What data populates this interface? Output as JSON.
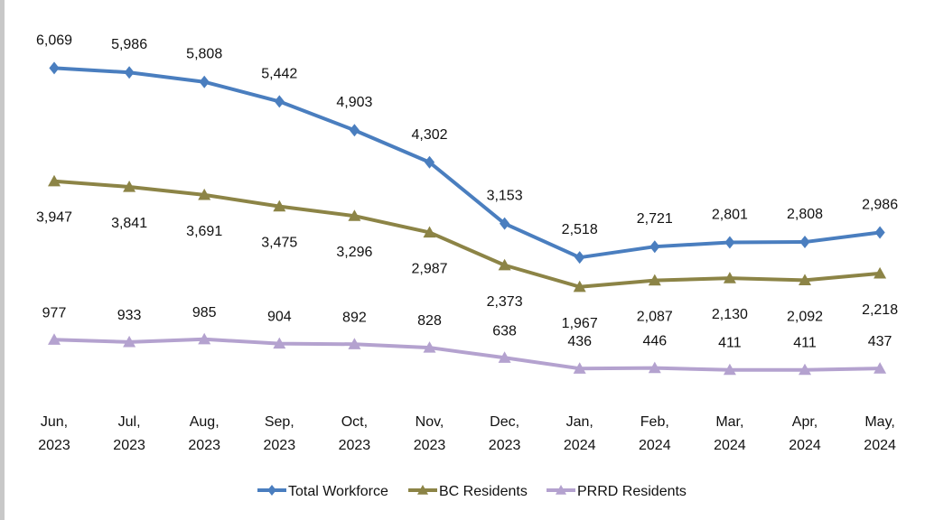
{
  "chart_data": {
    "type": "line",
    "categories": [
      [
        "Jun,",
        "2023"
      ],
      [
        "Jul,",
        "2023"
      ],
      [
        "Aug,",
        "2023"
      ],
      [
        "Sep,",
        "2023"
      ],
      [
        "Oct,",
        "2023"
      ],
      [
        "Nov,",
        "2023"
      ],
      [
        "Dec,",
        "2023"
      ],
      [
        "Jan,",
        "2024"
      ],
      [
        "Feb,",
        "2024"
      ],
      [
        "Mar,",
        "2024"
      ],
      [
        "Apr,",
        "2024"
      ],
      [
        "May,",
        "2024"
      ]
    ],
    "series": [
      {
        "name": "Total Workforce",
        "color": "#4a7ebf",
        "marker": "diamond",
        "values": [
          6069,
          5986,
          5808,
          5442,
          4903,
          4302,
          3153,
          2518,
          2721,
          2801,
          2808,
          2986
        ],
        "labels": [
          "6,069",
          "5,986",
          "5,808",
          "5,442",
          "4,903",
          "4,302",
          "3,153",
          "2,518",
          "2,721",
          "2,801",
          "2,808",
          "2,986"
        ],
        "label_position": "above"
      },
      {
        "name": "BC Residents",
        "color": "#8c8446",
        "marker": "triangle",
        "values": [
          3947,
          3841,
          3691,
          3475,
          3296,
          2987,
          2373,
          1967,
          2087,
          2130,
          2092,
          2218
        ],
        "labels": [
          "3,947",
          "3,841",
          "3,691",
          "3,475",
          "3,296",
          "2,987",
          "2,373",
          "1,967",
          "2,087",
          "2,130",
          "2,092",
          "2,218"
        ],
        "label_position": "below"
      },
      {
        "name": "PRRD Residents",
        "color": "#b4a2cf",
        "marker": "triangle",
        "values": [
          977,
          933,
          985,
          904,
          892,
          828,
          638,
          436,
          446,
          411,
          411,
          437
        ],
        "labels": [
          "977",
          "933",
          "985",
          "904",
          "892",
          "828",
          "638",
          "436",
          "446",
          "411",
          "411",
          "437"
        ],
        "label_position": "above"
      }
    ],
    "title": "",
    "xlabel": "",
    "ylabel": "",
    "ylim": [
      0,
      6500
    ],
    "grid": false,
    "legend": "bottom-center"
  }
}
